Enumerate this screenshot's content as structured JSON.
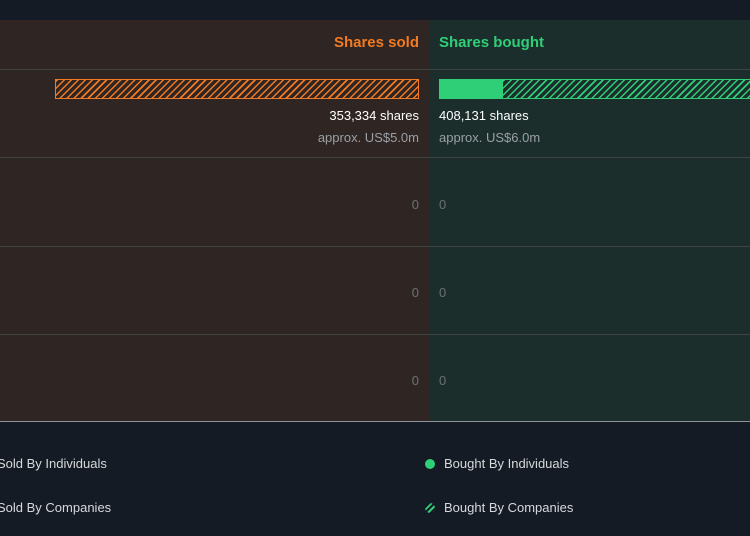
{
  "chart_data": {
    "type": "bar",
    "headers": {
      "sold": "Shares sold",
      "bought": "Shares bought"
    },
    "rows": [
      {
        "sold_shares": 353334,
        "sold_shares_label": "353,334 shares",
        "sold_usd_label": "approx. US$5.0m",
        "bought_shares": 408131,
        "bought_shares_label": "408,131 shares",
        "bought_usd_label": "approx. US$6.0m",
        "sold_individuals": 0,
        "sold_companies": 353334,
        "bought_individuals": 62000,
        "bought_companies": 346131
      },
      {
        "sold_shares": 0,
        "bought_shares": 0,
        "sold_label": "0",
        "bought_label": "0"
      },
      {
        "sold_shares": 0,
        "bought_shares": 0,
        "sold_label": "0",
        "bought_label": "0"
      },
      {
        "sold_shares": 0,
        "bought_shares": 0,
        "sold_label": "0",
        "bought_label": "0"
      }
    ],
    "max_shares": 408131,
    "colors": {
      "sold": "#f27a22",
      "bought": "#2fcf78",
      "sold_bg": "#2f2522",
      "bought_bg": "#1b2e2c"
    }
  },
  "legend": {
    "sold_individuals": "Sold By Individuals",
    "sold_companies": "Sold By Companies",
    "bought_individuals": "Bought By Individuals",
    "bought_companies": "Bought By Companies"
  }
}
